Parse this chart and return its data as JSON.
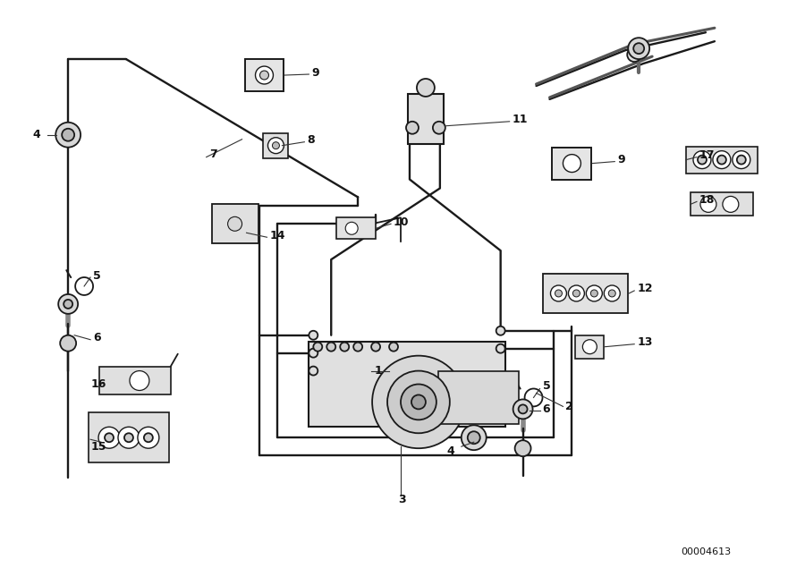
{
  "background": "#ffffff",
  "lc": "#1a1a1a",
  "diagram_id": "00004613",
  "figw": 9.0,
  "figh": 6.35,
  "dpi": 100
}
